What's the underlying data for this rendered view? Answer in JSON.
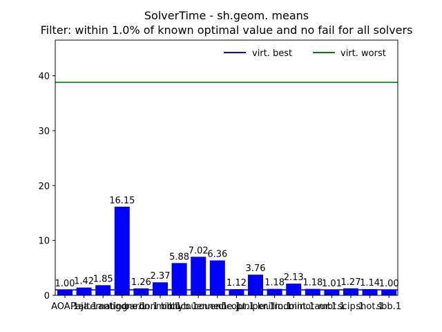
{
  "chart_data": {
    "type": "bar",
    "title": "SolverTime - sh.geom. means",
    "subtitle": "Filter: within 1.0% of known optimal value and no fail for all solvers",
    "xlabel": "",
    "ylabel": "",
    "ylim": [
      0,
      46.5
    ],
    "yticks": [
      0,
      10,
      20,
      30,
      40
    ],
    "grid": false,
    "legend_position": "top-right",
    "bar_color": "#0000ff",
    "categories": [
      "AOA.1",
      "Paja.1",
      "alternating",
      "antigone.1",
      "baron.1",
      "bonmin.1",
      "bbhyb.1",
      "bbcouenne.1",
      "couenne.1",
      "dicopt.1",
      "juniper.1",
      "knitro.1",
      "lindoint.1",
      "minotaur.1",
      "mbt.1",
      "scip.1",
      "shot.1",
      "sbb.1"
    ],
    "category_labels_display": [
      "AOA.1",
      "Paja.1",
      "alternating",
      "antigone.1",
      "baron.1",
      "bonmin.1",
      "bbhyb.1",
      "bbcouenne.1",
      "couenne.1",
      "dicopt.1",
      "juniper.1",
      "knitro.1",
      "lindoint.1",
      "minotaur.1",
      "mbt.1",
      "scip.1",
      "shot.1",
      "sbb.1"
    ],
    "values": [
      1.0,
      1.42,
      1.85,
      16.15,
      1.26,
      2.37,
      5.88,
      7.02,
      6.36,
      1.12,
      3.76,
      1.18,
      2.13,
      1.18,
      1.01,
      1.27,
      1.14,
      1.0
    ],
    "value_labels": [
      "1.00",
      "1.42",
      "1.85",
      "16.15",
      "1.26",
      "2.37",
      "5.88",
      "7.02",
      "6.36",
      "1.12",
      "3.76",
      "1.18",
      "2.13",
      "1.18",
      "1.01",
      "1.27",
      "1.14",
      "1.00"
    ],
    "reference_lines": [
      {
        "name": "virt. best",
        "value": 1.0,
        "color": "#0000ff"
      },
      {
        "name": "virt. worst",
        "value": 38.8,
        "color": "#008000"
      }
    ]
  }
}
